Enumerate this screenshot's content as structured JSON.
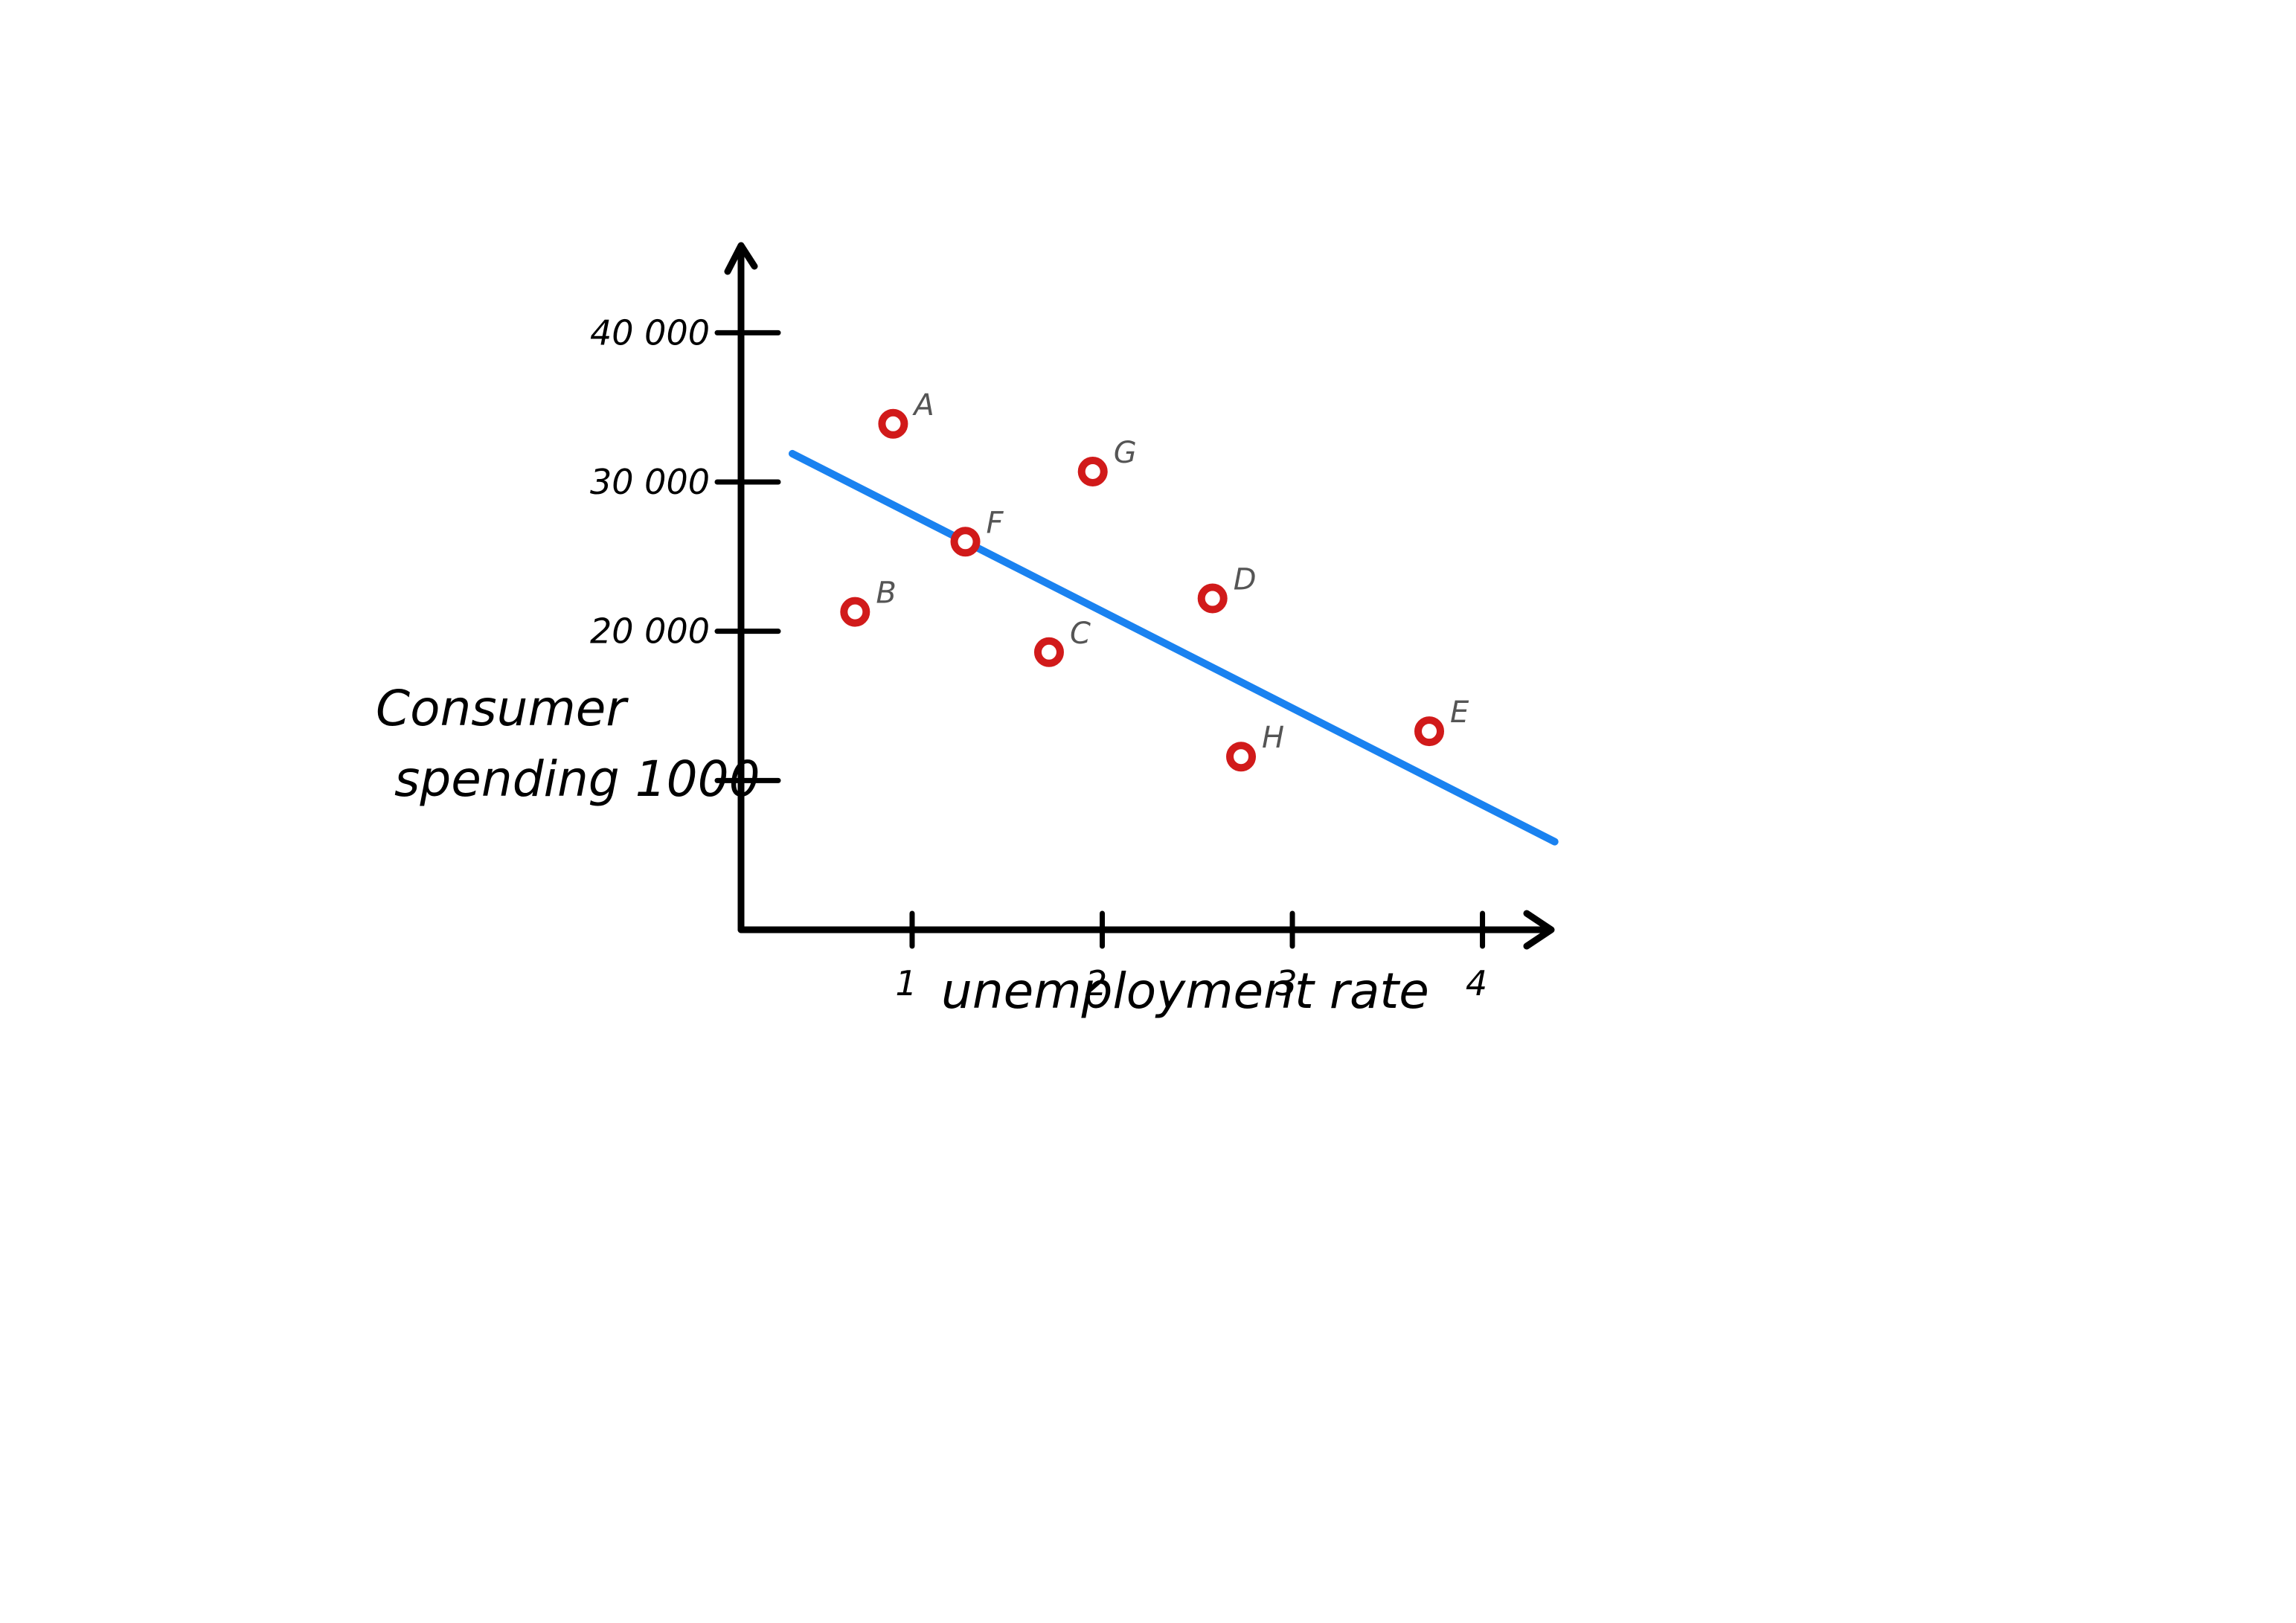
{
  "chart_data": {
    "type": "scatter",
    "xlabel": "unemployment rate",
    "ylabel_lines": [
      "Consumer",
      "spending 1000"
    ],
    "x_ticks": [
      {
        "value": 1,
        "label": "1"
      },
      {
        "value": 2,
        "label": "2"
      },
      {
        "value": 3,
        "label": "3"
      },
      {
        "value": 4,
        "label": "4"
      }
    ],
    "y_ticks": [
      {
        "value": 10000,
        "label": ""
      },
      {
        "value": 20000,
        "label": "20 000"
      },
      {
        "value": 30000,
        "label": "30 000"
      },
      {
        "value": 40000,
        "label": "40 000"
      }
    ],
    "xlim": [
      0.1,
      4.35
    ],
    "ylim": [
      0,
      45600
    ],
    "points": [
      {
        "name": "A",
        "x": 0.9,
        "y": 33900
      },
      {
        "name": "B",
        "x": 0.7,
        "y": 21300
      },
      {
        "name": "C",
        "x": 1.72,
        "y": 18600
      },
      {
        "name": "D",
        "x": 2.58,
        "y": 22200
      },
      {
        "name": "E",
        "x": 3.72,
        "y": 13300
      },
      {
        "name": "F",
        "x": 1.28,
        "y": 26000
      },
      {
        "name": "G",
        "x": 1.95,
        "y": 30700
      },
      {
        "name": "H",
        "x": 2.73,
        "y": 11600
      }
    ],
    "trend_line": {
      "x": [
        0.37,
        4.38
      ],
      "y": [
        31900,
        5900
      ]
    },
    "grid": false,
    "colors": {
      "points": "#d11a1a",
      "trend_line": "#1a82f0",
      "axes": "#000000",
      "point_labels": "#555555"
    }
  }
}
